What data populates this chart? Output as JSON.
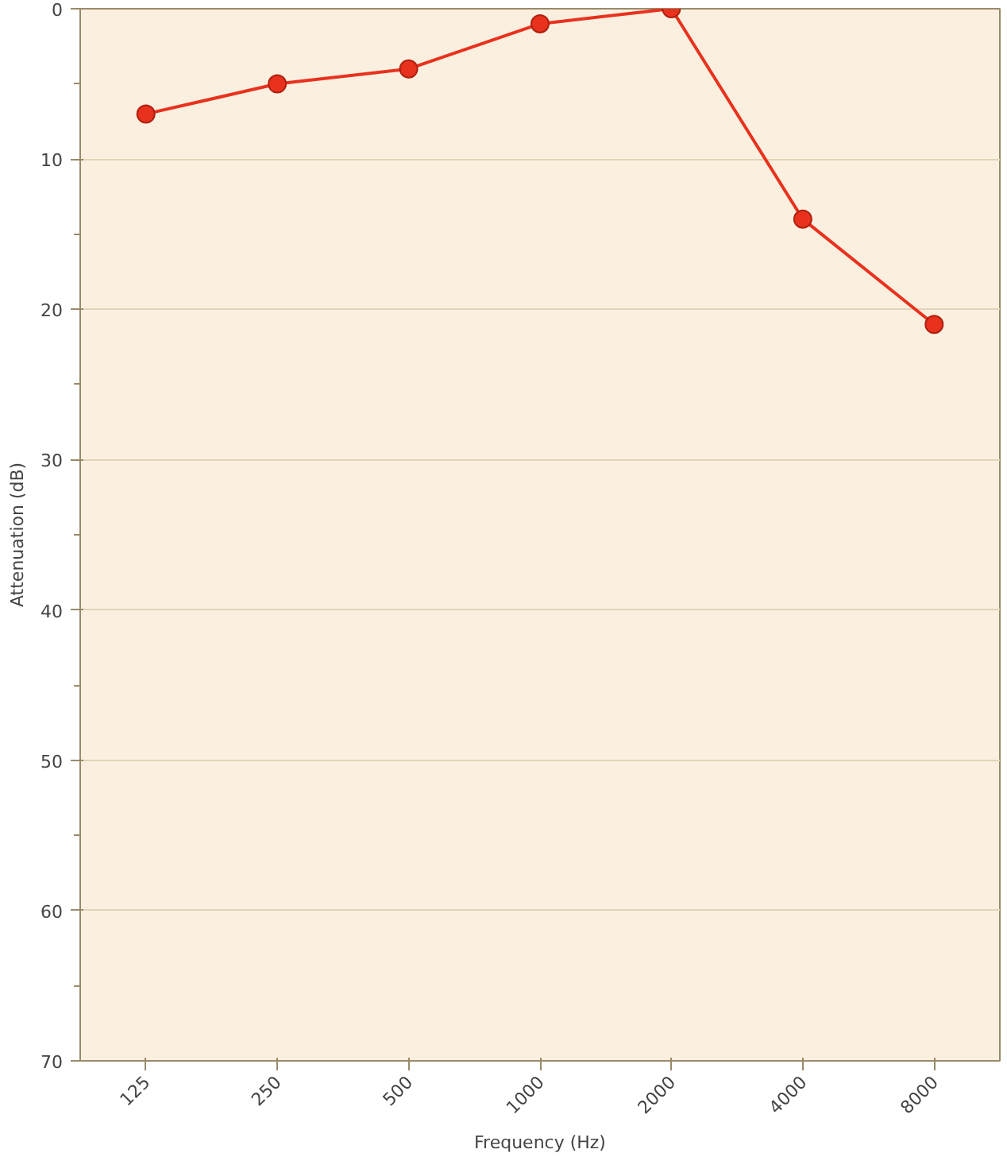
{
  "chart_data": {
    "type": "line",
    "xlabel": "Frequency (Hz)",
    "ylabel": "Attenuation (dB)",
    "categories": [
      "125",
      "250",
      "500",
      "1000",
      "2000",
      "4000",
      "8000"
    ],
    "series": [
      {
        "color": "#e8321e",
        "values": [
          7,
          5,
          4,
          1,
          0,
          14,
          21
        ]
      }
    ],
    "ylim": [
      70,
      0
    ],
    "yticks": [
      0,
      10,
      20,
      30,
      40,
      50,
      60,
      70
    ],
    "grid": "y",
    "marker": "circle",
    "line_style": "solid"
  }
}
